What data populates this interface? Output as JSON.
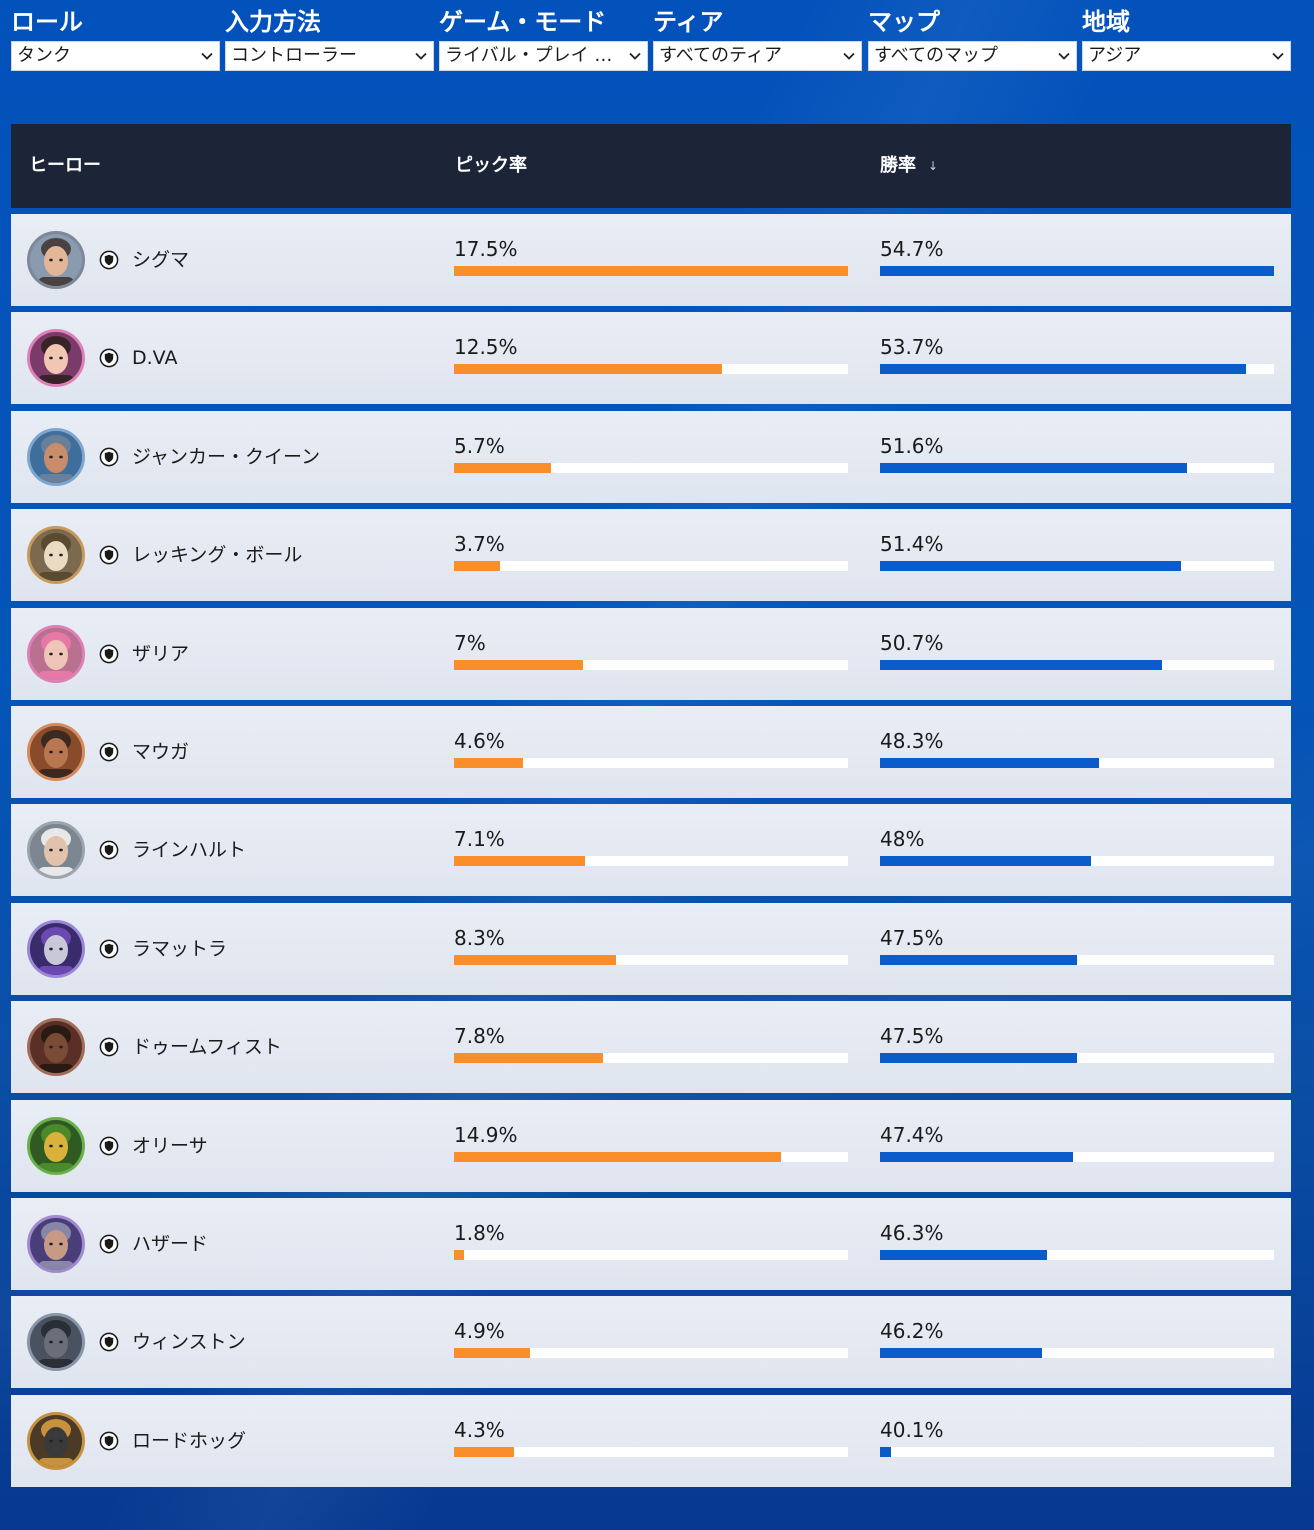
{
  "filters": [
    {
      "label": "ロール",
      "value": "タンク"
    },
    {
      "label": "入力方法",
      "value": "コントローラー"
    },
    {
      "label": "ゲーム・モード",
      "value": "ライバル・プレイ …"
    },
    {
      "label": "ティア",
      "value": "すべてのティア"
    },
    {
      "label": "マップ",
      "value": "すべてのマップ"
    },
    {
      "label": "地域",
      "value": "アジア"
    }
  ],
  "table": {
    "headers": {
      "hero": "ヒーロー",
      "pick_rate": "ピック率",
      "win_rate": "勝率",
      "sort_indicator": "↓"
    },
    "rows": [
      {
        "name": "シグマ",
        "pick_rate": "17.5%",
        "win_rate": "54.7%",
        "pick_fill": 1.0,
        "win_fill": 1.0,
        "ring": "#7d8898",
        "avatar": {
          "bg": "#8a9bb0",
          "skin": "#e2b697",
          "hair": "#4a4240"
        }
      },
      {
        "name": "D.VA",
        "pick_rate": "12.5%",
        "win_rate": "53.7%",
        "pick_fill": 0.68,
        "win_fill": 0.93,
        "ring": "#e07fb5",
        "avatar": {
          "bg": "#7a3a6a",
          "skin": "#f1c6b2",
          "hair": "#3a2328"
        }
      },
      {
        "name": "ジャンカー・クイーン",
        "pick_rate": "5.7%",
        "win_rate": "51.6%",
        "pick_fill": 0.245,
        "win_fill": 0.78,
        "ring": "#7fa6cf",
        "avatar": {
          "bg": "#3e6f9c",
          "skin": "#c98d6c",
          "hair": "#6a7f98"
        }
      },
      {
        "name": "レッキング・ボール",
        "pick_rate": "3.7%",
        "win_rate": "51.4%",
        "pick_fill": 0.118,
        "win_fill": 0.765,
        "ring": "#c79a5c",
        "avatar": {
          "bg": "#7b6a4e",
          "skin": "#e9dcc3",
          "hair": "#5a4a30"
        }
      },
      {
        "name": "ザリア",
        "pick_rate": "7%",
        "win_rate": "50.7%",
        "pick_fill": 0.328,
        "win_fill": 0.715,
        "ring": "#e07fb5",
        "avatar": {
          "bg": "#b9718f",
          "skin": "#f0c4b8",
          "hair": "#e57aa8"
        }
      },
      {
        "name": "マウガ",
        "pick_rate": "4.6%",
        "win_rate": "48.3%",
        "pick_fill": 0.176,
        "win_fill": 0.555,
        "ring": "#d68a5a",
        "avatar": {
          "bg": "#8a4a2c",
          "skin": "#b87651",
          "hair": "#3c2a20"
        }
      },
      {
        "name": "ラインハルト",
        "pick_rate": "7.1%",
        "win_rate": "48%",
        "pick_fill": 0.333,
        "win_fill": 0.535,
        "ring": "#9aa3ae",
        "avatar": {
          "bg": "#7c8690",
          "skin": "#e0c2ad",
          "hair": "#e8e8e8"
        }
      },
      {
        "name": "ラマットラ",
        "pick_rate": "8.3%",
        "win_rate": "47.5%",
        "pick_fill": 0.41,
        "win_fill": 0.5,
        "ring": "#9a86d8",
        "avatar": {
          "bg": "#3a2b6a",
          "skin": "#c8c8d8",
          "hair": "#6a4ab0"
        }
      },
      {
        "name": "ドゥームフィスト",
        "pick_rate": "7.8%",
        "win_rate": "47.5%",
        "pick_fill": 0.378,
        "win_fill": 0.5,
        "ring": "#a36b5a",
        "avatar": {
          "bg": "#5a3026",
          "skin": "#7a4c36",
          "hair": "#2a1a14"
        }
      },
      {
        "name": "オリーサ",
        "pick_rate": "14.9%",
        "win_rate": "47.4%",
        "pick_fill": 0.83,
        "win_fill": 0.49,
        "ring": "#69b04a",
        "avatar": {
          "bg": "#2f5a22",
          "skin": "#d8b23a",
          "hair": "#4a8a2a"
        }
      },
      {
        "name": "ハザード",
        "pick_rate": "1.8%",
        "win_rate": "46.3%",
        "pick_fill": 0.025,
        "win_fill": 0.425,
        "ring": "#a38ad0",
        "avatar": {
          "bg": "#4a3e7a",
          "skin": "#c79a86",
          "hair": "#8a86a8"
        }
      },
      {
        "name": "ウィンストン",
        "pick_rate": "4.9%",
        "win_rate": "46.2%",
        "pick_fill": 0.193,
        "win_fill": 0.41,
        "ring": "#8995a8",
        "avatar": {
          "bg": "#4a5260",
          "skin": "#6a6e78",
          "hair": "#2a2e36"
        }
      },
      {
        "name": "ロードホッグ",
        "pick_rate": "4.3%",
        "win_rate": "40.1%",
        "pick_fill": 0.152,
        "win_fill": 0.028,
        "ring": "#c8923c",
        "avatar": {
          "bg": "#4a3a26",
          "skin": "#3a3a3a",
          "hair": "#c8923c"
        }
      }
    ]
  },
  "colors": {
    "pick_bar": "#fa8e2a",
    "win_bar": "#0b5ccb",
    "header_bg": "#1c2438",
    "row_bg": "#e4e9f2"
  },
  "icons": {
    "select_chevron": "chevron-down-icon",
    "role": "tank-role-icon"
  }
}
